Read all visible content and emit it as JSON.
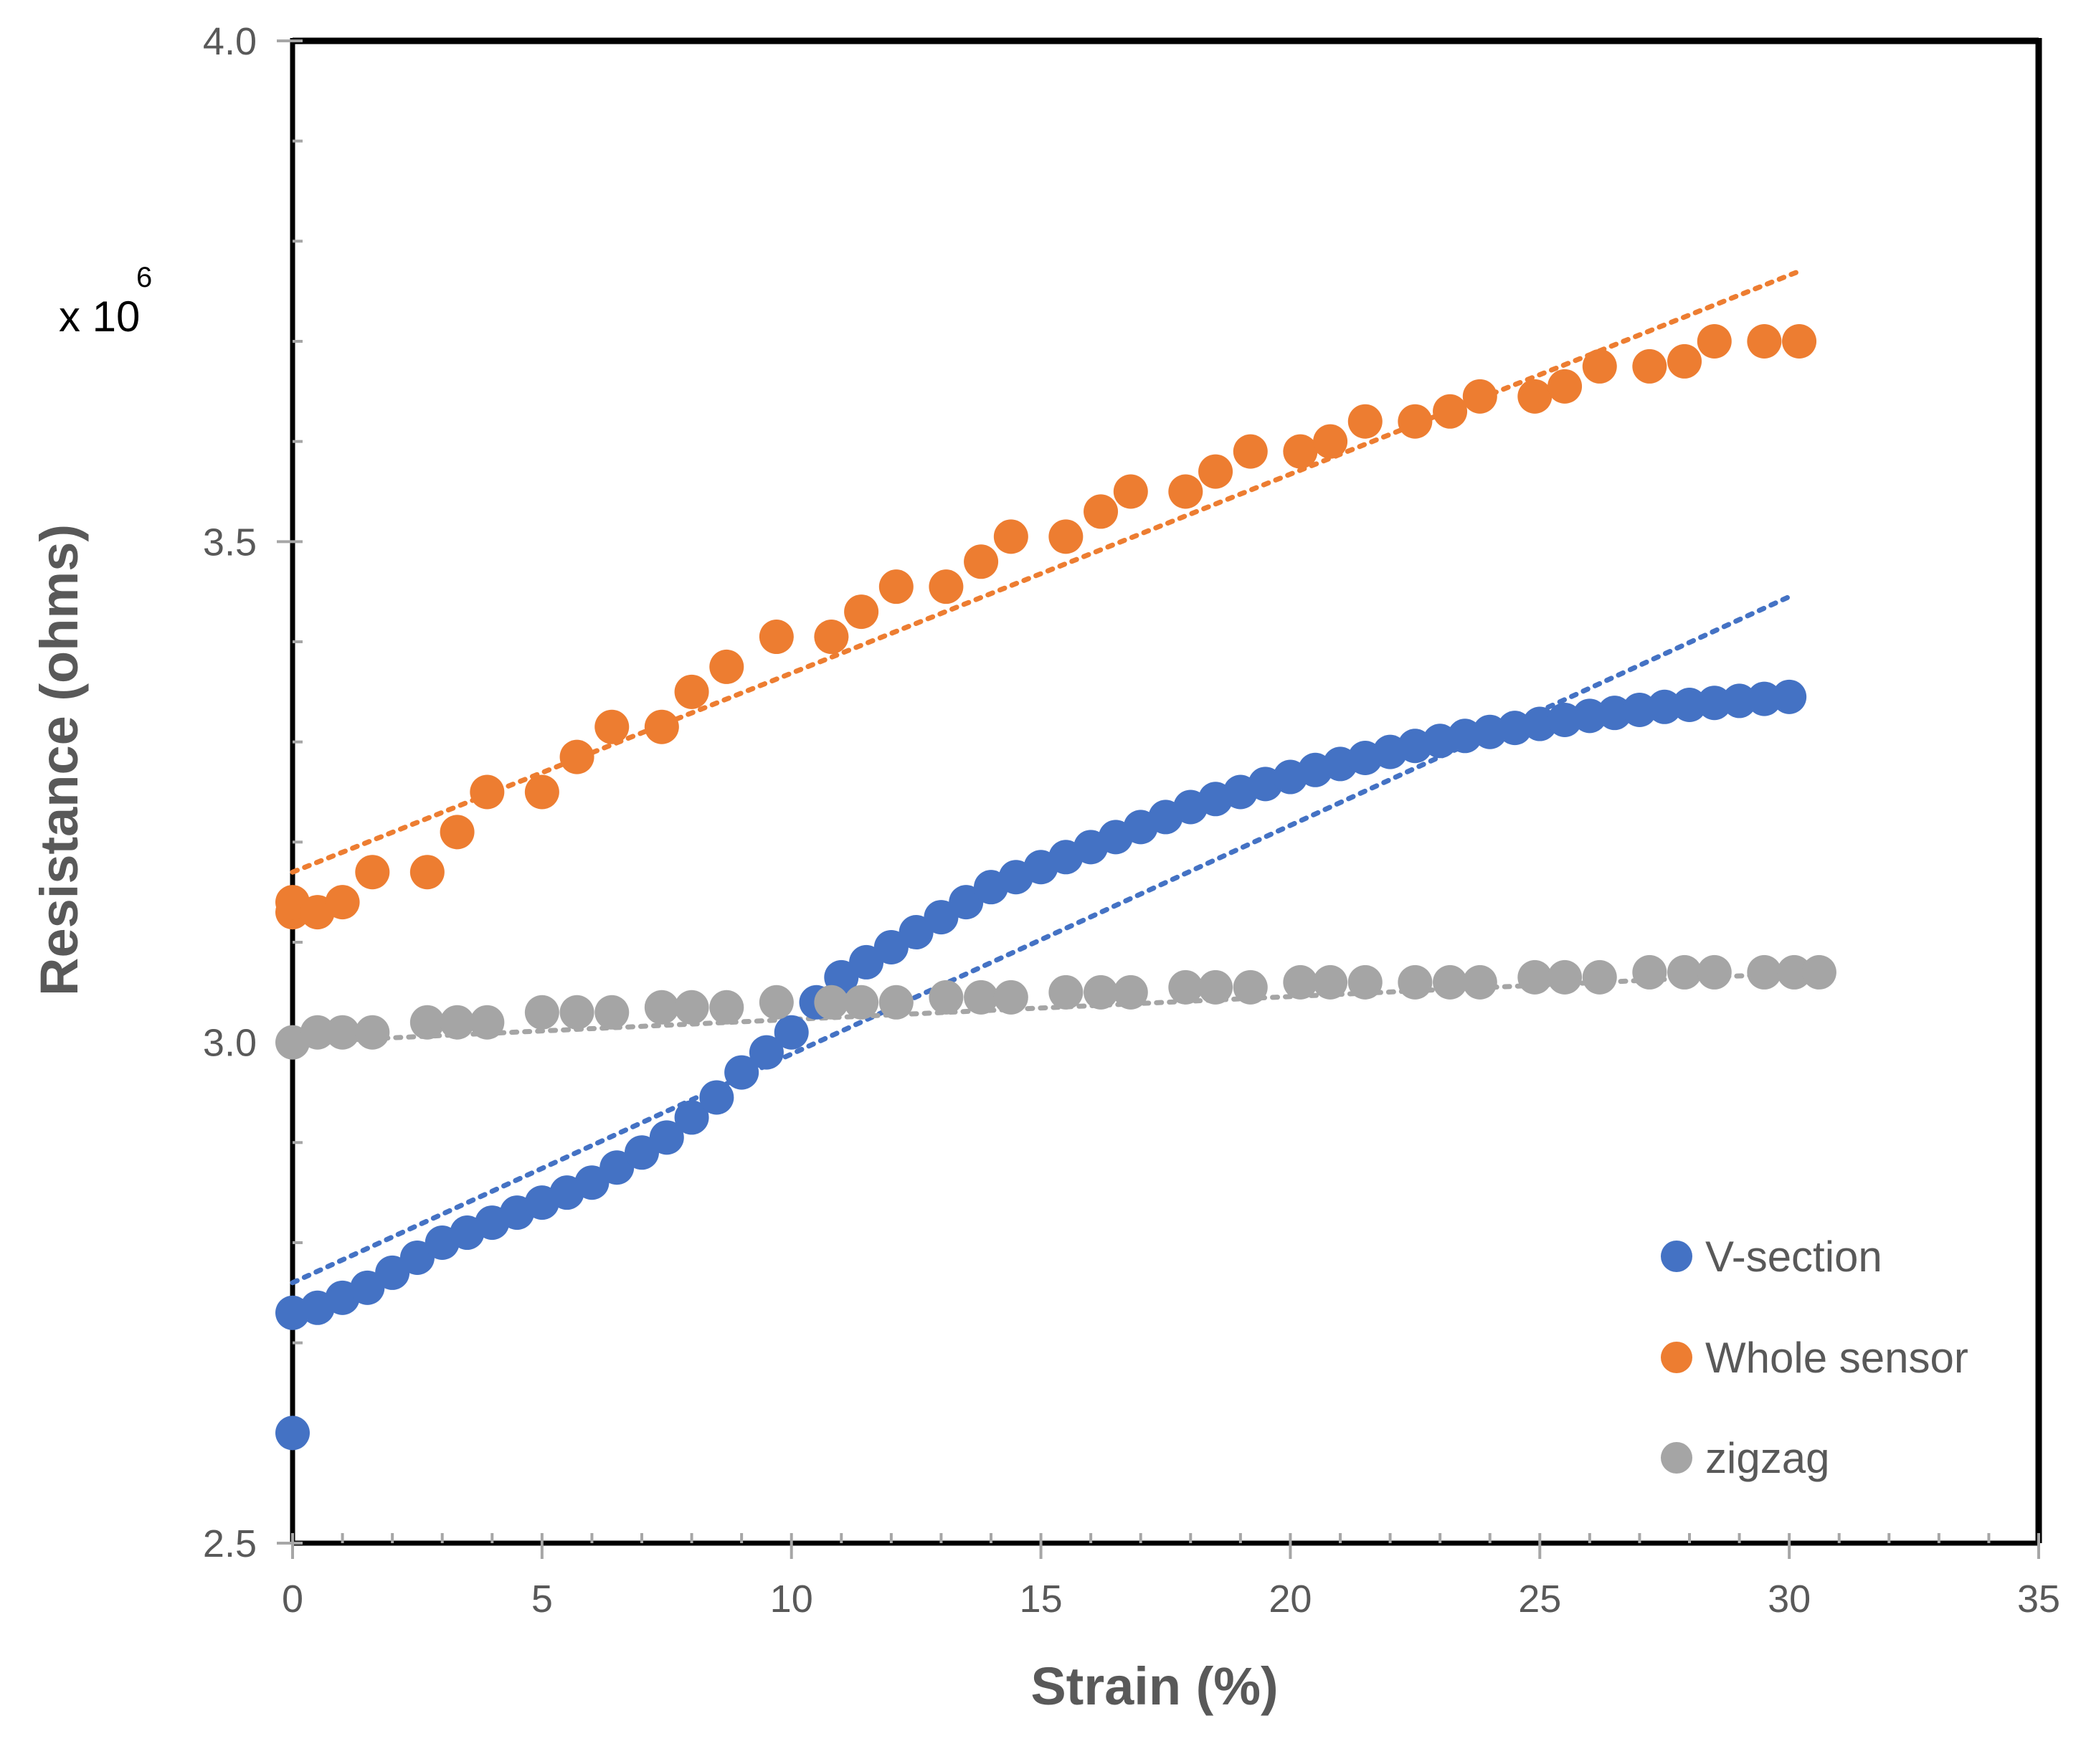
{
  "chart_data": {
    "type": "scatter",
    "title": "",
    "xlabel": "Strain (%)",
    "ylabel": "Resistance (ohms)",
    "y_multiplier": {
      "base": "x 10",
      "exponent": "6"
    },
    "xlim": [
      0,
      35
    ],
    "ylim": [
      2.5,
      4.0
    ],
    "x_ticks": [
      0,
      5,
      10,
      15,
      20,
      25,
      30,
      35
    ],
    "x_tick_labels": [
      "0",
      "5",
      "10",
      "15",
      "20",
      "25",
      "30",
      "35"
    ],
    "y_ticks": [
      2.5,
      3.0,
      3.5,
      4.0
    ],
    "y_tick_labels": [
      "2.5",
      "3.0",
      "3.5",
      "4.0"
    ],
    "y_minor_step": 0.1,
    "x_minor_step": 1,
    "grid": false,
    "legend_position": "bottom-right",
    "series": [
      {
        "name": "V-section",
        "color": "#4472C4",
        "x": [
          0,
          0,
          0.5,
          1,
          1.5,
          2,
          2.5,
          3,
          3.5,
          4,
          4.5,
          5,
          5.5,
          6,
          6.5,
          7,
          7.5,
          8,
          8.5,
          9,
          9.5,
          10,
          10.5,
          11,
          11.5,
          12,
          12.5,
          13,
          13.5,
          14,
          14.5,
          15,
          15.5,
          16,
          16.5,
          17,
          17.5,
          18,
          18.5,
          19,
          19.5,
          20,
          20.5,
          21,
          21.5,
          22,
          22.5,
          23,
          23.5,
          24,
          24.5,
          25,
          25.5,
          26,
          26.5,
          27,
          27.5,
          28,
          28.5,
          29,
          29.5,
          30
        ],
        "y": [
          2.61,
          2.73,
          2.735,
          2.745,
          2.755,
          2.77,
          2.785,
          2.8,
          2.81,
          2.82,
          2.83,
          2.84,
          2.85,
          2.86,
          2.875,
          2.89,
          2.905,
          2.925,
          2.945,
          2.97,
          2.99,
          3.01,
          3.04,
          3.065,
          3.08,
          3.095,
          3.11,
          3.125,
          3.14,
          3.155,
          3.165,
          3.175,
          3.185,
          3.195,
          3.205,
          3.215,
          3.225,
          3.235,
          3.243,
          3.25,
          3.258,
          3.265,
          3.272,
          3.278,
          3.284,
          3.29,
          3.296,
          3.301,
          3.306,
          3.31,
          3.314,
          3.318,
          3.322,
          3.326,
          3.329,
          3.332,
          3.335,
          3.337,
          3.339,
          3.341,
          3.343,
          3.345
        ],
        "trendline": {
          "style": "dotted",
          "x": [
            0,
            30
          ],
          "y": [
            2.76,
            3.445
          ]
        }
      },
      {
        "name": "Whole sensor",
        "color": "#ED7D31",
        "x": [
          0,
          0,
          0.5,
          1,
          1.6,
          2.7,
          3.3,
          3.9,
          5.0,
          5.7,
          6.4,
          7.4,
          8.0,
          8.7,
          9.7,
          10.8,
          11.4,
          12.1,
          13.1,
          13.8,
          14.4,
          15.5,
          16.2,
          16.8,
          17.9,
          18.5,
          19.2,
          20.2,
          20.8,
          21.5,
          22.5,
          23.2,
          23.8,
          24.9,
          25.5,
          26.2,
          27.2,
          27.9,
          28.5,
          29.5,
          30.2
        ],
        "y": [
          3.13,
          3.14,
          3.13,
          3.14,
          3.17,
          3.17,
          3.21,
          3.25,
          3.25,
          3.285,
          3.315,
          3.315,
          3.35,
          3.375,
          3.405,
          3.405,
          3.43,
          3.455,
          3.455,
          3.48,
          3.505,
          3.505,
          3.53,
          3.55,
          3.55,
          3.57,
          3.59,
          3.59,
          3.6,
          3.62,
          3.62,
          3.63,
          3.645,
          3.645,
          3.655,
          3.675,
          3.675,
          3.68,
          3.7,
          3.7,
          3.7
        ],
        "trendline": {
          "style": "dotted",
          "x": [
            0,
            30.2
          ],
          "y": [
            3.17,
            3.77
          ]
        }
      },
      {
        "name": "zigzag",
        "color": "#A5A5A5",
        "x": [
          0,
          0.5,
          1,
          1.6,
          2.7,
          3.3,
          3.9,
          5.0,
          5.7,
          6.4,
          7.4,
          8.0,
          8.7,
          9.7,
          10.8,
          11.4,
          12.1,
          13.1,
          13.8,
          14.4,
          15.5,
          16.2,
          16.8,
          17.9,
          18.5,
          19.2,
          20.2,
          20.8,
          21.5,
          22.5,
          23.2,
          23.8,
          24.9,
          25.5,
          26.2,
          27.2,
          27.9,
          28.5,
          29.5,
          30.1,
          30.6
        ],
        "y": [
          3.0,
          3.01,
          3.01,
          3.01,
          3.02,
          3.02,
          3.02,
          3.03,
          3.03,
          3.03,
          3.035,
          3.035,
          3.035,
          3.04,
          3.04,
          3.04,
          3.04,
          3.045,
          3.045,
          3.045,
          3.05,
          3.05,
          3.05,
          3.055,
          3.055,
          3.055,
          3.06,
          3.06,
          3.06,
          3.06,
          3.06,
          3.06,
          3.065,
          3.065,
          3.065,
          3.07,
          3.07,
          3.07,
          3.07,
          3.07,
          3.07
        ],
        "trendline": {
          "style": "dotted",
          "x": [
            0,
            30.6
          ],
          "y": [
            3.0,
            3.07
          ]
        }
      }
    ]
  }
}
